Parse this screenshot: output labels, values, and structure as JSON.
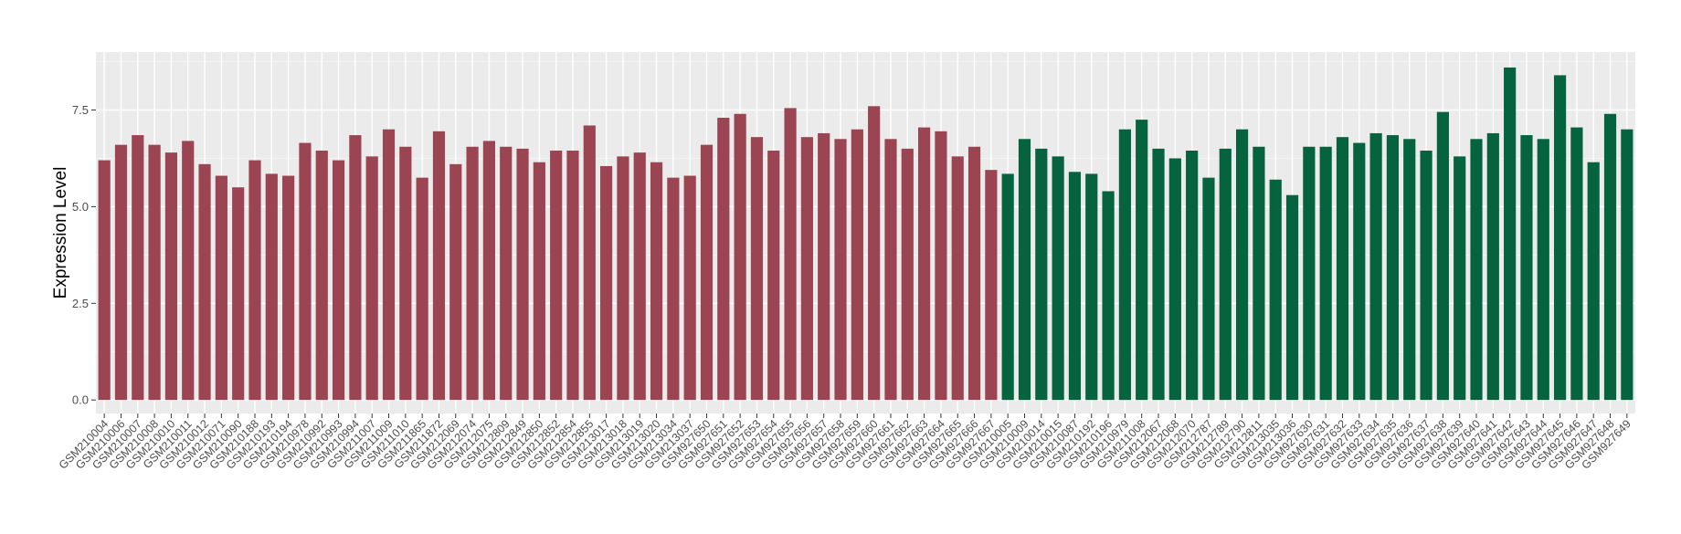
{
  "chart_data": {
    "type": "bar",
    "title": "",
    "xlabel": "",
    "ylabel": "Expression Level",
    "ylim": [
      -0.35,
      9.0
    ],
    "yticks": [
      "0.0",
      "2.5",
      "5.0",
      "7.5"
    ],
    "ytick_values": [
      0.0,
      2.5,
      5.0,
      7.5
    ],
    "grid": true,
    "legend": "none",
    "group_colors": [
      "#9b4452",
      "#05643f"
    ],
    "panel_bg": "#ebebeb",
    "categories": [
      "GSM210004",
      "GSM210006",
      "GSM210007",
      "GSM210008",
      "GSM210010",
      "GSM210011",
      "GSM210012",
      "GSM210071",
      "GSM210090",
      "GSM210188",
      "GSM210193",
      "GSM210194",
      "GSM210978",
      "GSM210992",
      "GSM210993",
      "GSM210994",
      "GSM211007",
      "GSM211009",
      "GSM211010",
      "GSM211865",
      "GSM211872",
      "GSM212069",
      "GSM212074",
      "GSM212075",
      "GSM212809",
      "GSM212849",
      "GSM212850",
      "GSM212852",
      "GSM212854",
      "GSM212855",
      "GSM213017",
      "GSM213018",
      "GSM213019",
      "GSM213020",
      "GSM213034",
      "GSM213037",
      "GSM927650",
      "GSM927651",
      "GSM927652",
      "GSM927653",
      "GSM927654",
      "GSM927655",
      "GSM927656",
      "GSM927657",
      "GSM927658",
      "GSM927659",
      "GSM927660",
      "GSM927661",
      "GSM927662",
      "GSM927663",
      "GSM927664",
      "GSM927665",
      "GSM927666",
      "GSM927667",
      "GSM210005",
      "GSM210009",
      "GSM210014",
      "GSM210015",
      "GSM210087",
      "GSM210192",
      "GSM210196",
      "GSM210979",
      "GSM211008",
      "GSM212067",
      "GSM212068",
      "GSM212070",
      "GSM212787",
      "GSM212789",
      "GSM212790",
      "GSM212811",
      "GSM213035",
      "GSM213036",
      "GSM927630",
      "GSM927631",
      "GSM927632",
      "GSM927633",
      "GSM927634",
      "GSM927635",
      "GSM927636",
      "GSM927637",
      "GSM927638",
      "GSM927639",
      "GSM927640",
      "GSM927641",
      "GSM927642",
      "GSM927643",
      "GSM927644",
      "GSM927645",
      "GSM927646",
      "GSM927647",
      "GSM927648",
      "GSM927649"
    ],
    "values": [
      6.2,
      6.6,
      6.85,
      6.6,
      6.4,
      6.7,
      6.1,
      5.8,
      5.5,
      6.2,
      5.85,
      5.8,
      6.65,
      6.45,
      6.2,
      6.85,
      6.3,
      7.0,
      6.55,
      5.75,
      6.95,
      6.1,
      6.55,
      6.7,
      6.55,
      6.5,
      6.15,
      6.45,
      6.45,
      7.1,
      6.05,
      6.3,
      6.4,
      6.15,
      5.75,
      5.8,
      6.6,
      7.3,
      7.4,
      6.8,
      6.45,
      7.55,
      6.8,
      6.9,
      6.75,
      7.0,
      7.6,
      6.75,
      6.5,
      7.05,
      6.95,
      6.3,
      6.55,
      5.95,
      5.85,
      6.75,
      6.5,
      6.3,
      5.9,
      5.85,
      5.4,
      7.0,
      7.25,
      6.5,
      6.25,
      6.45,
      5.75,
      6.5,
      7.0,
      6.55,
      5.7,
      5.3,
      6.55,
      6.55,
      6.8,
      6.65,
      6.9,
      6.85,
      6.75,
      6.45,
      7.45,
      6.3,
      6.75,
      6.9,
      8.6,
      6.85,
      6.75,
      8.4,
      7.05,
      6.15,
      7.4,
      7.0
    ],
    "groups": [
      0,
      0,
      0,
      0,
      0,
      0,
      0,
      0,
      0,
      0,
      0,
      0,
      0,
      0,
      0,
      0,
      0,
      0,
      0,
      0,
      0,
      0,
      0,
      0,
      0,
      0,
      0,
      0,
      0,
      0,
      0,
      0,
      0,
      0,
      0,
      0,
      0,
      0,
      0,
      0,
      0,
      0,
      0,
      0,
      0,
      0,
      0,
      0,
      0,
      0,
      0,
      0,
      0,
      0,
      1,
      1,
      1,
      1,
      1,
      1,
      1,
      1,
      1,
      1,
      1,
      1,
      1,
      1,
      1,
      1,
      1,
      1,
      1,
      1,
      1,
      1,
      1,
      1,
      1,
      1,
      1,
      1,
      1,
      1,
      1,
      1,
      1,
      1,
      1,
      1,
      1,
      1
    ]
  }
}
